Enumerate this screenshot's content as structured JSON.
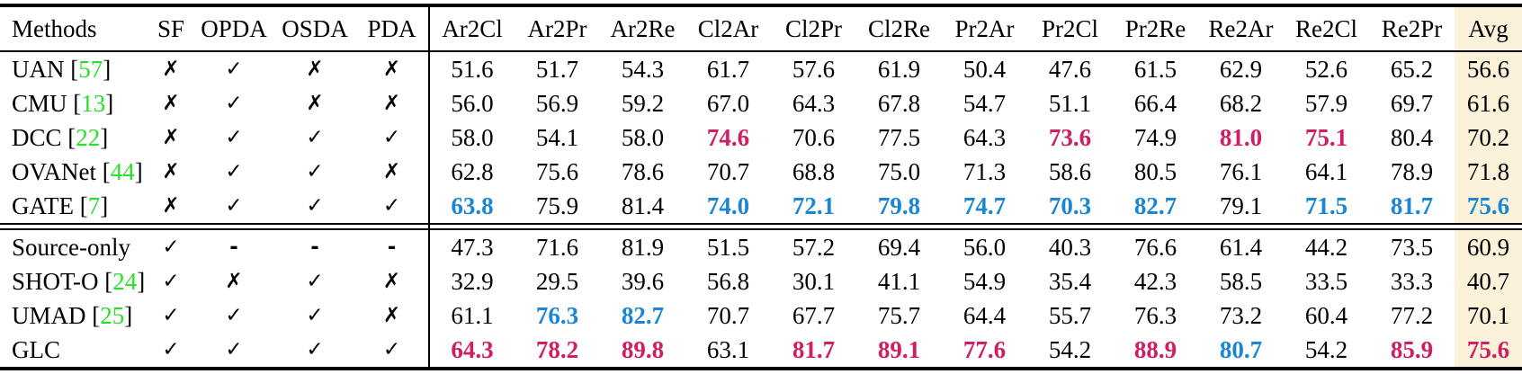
{
  "table": {
    "header": {
      "methods_label": "Methods",
      "flag_columns": [
        "SF",
        "OPDA",
        "OSDA",
        "PDA"
      ],
      "metric_columns": [
        "Ar2Cl",
        "Ar2Pr",
        "Ar2Re",
        "Cl2Ar",
        "Cl2Pr",
        "Cl2Re",
        "Pr2Ar",
        "Pr2Cl",
        "Pr2Re",
        "Re2Ar",
        "Re2Cl",
        "Re2Pr"
      ],
      "avg_label": "Avg"
    },
    "glyphs": {
      "yes": "✓",
      "no": "✗",
      "dash": "-",
      "cite_open": "[",
      "cite_close": "]"
    },
    "groups": [
      {
        "name": "non-source-free-methods",
        "rows": [
          {
            "method": "UAN",
            "cite": "57",
            "flags": [
              "no",
              "yes",
              "no",
              "no"
            ],
            "cells": [
              {
                "t": "51.6"
              },
              {
                "t": "51.7"
              },
              {
                "t": "54.3"
              },
              {
                "t": "61.7"
              },
              {
                "t": "57.6"
              },
              {
                "t": "61.9"
              },
              {
                "t": "50.4"
              },
              {
                "t": "47.6"
              },
              {
                "t": "61.5"
              },
              {
                "t": "62.9"
              },
              {
                "t": "52.6"
              },
              {
                "t": "65.2"
              }
            ],
            "avg": {
              "t": "56.6"
            }
          },
          {
            "method": "CMU",
            "cite": "13",
            "flags": [
              "no",
              "yes",
              "no",
              "no"
            ],
            "cells": [
              {
                "t": "56.0"
              },
              {
                "t": "56.9"
              },
              {
                "t": "59.2"
              },
              {
                "t": "67.0"
              },
              {
                "t": "64.3"
              },
              {
                "t": "67.8"
              },
              {
                "t": "54.7"
              },
              {
                "t": "51.1"
              },
              {
                "t": "66.4"
              },
              {
                "t": "68.2"
              },
              {
                "t": "57.9"
              },
              {
                "t": "69.7"
              }
            ],
            "avg": {
              "t": "61.6"
            }
          },
          {
            "method": "DCC",
            "cite": "22",
            "flags": [
              "no",
              "yes",
              "yes",
              "yes"
            ],
            "cells": [
              {
                "t": "58.0"
              },
              {
                "t": "54.1"
              },
              {
                "t": "58.0"
              },
              {
                "t": "74.6",
                "c": "best"
              },
              {
                "t": "70.6"
              },
              {
                "t": "77.5"
              },
              {
                "t": "64.3"
              },
              {
                "t": "73.6",
                "c": "best"
              },
              {
                "t": "74.9"
              },
              {
                "t": "81.0",
                "c": "best"
              },
              {
                "t": "75.1",
                "c": "best"
              },
              {
                "t": "80.4"
              }
            ],
            "avg": {
              "t": "70.2"
            }
          },
          {
            "method": "OVANet",
            "cite": "44",
            "flags": [
              "no",
              "yes",
              "yes",
              "no"
            ],
            "cells": [
              {
                "t": "62.8"
              },
              {
                "t": "75.6"
              },
              {
                "t": "78.6"
              },
              {
                "t": "70.7"
              },
              {
                "t": "68.8"
              },
              {
                "t": "75.0"
              },
              {
                "t": "71.3"
              },
              {
                "t": "58.6"
              },
              {
                "t": "80.5"
              },
              {
                "t": "76.1"
              },
              {
                "t": "64.1"
              },
              {
                "t": "78.9"
              }
            ],
            "avg": {
              "t": "71.8"
            }
          },
          {
            "method": "GATE",
            "cite": "7",
            "flags": [
              "no",
              "yes",
              "yes",
              "yes"
            ],
            "cells": [
              {
                "t": "63.8",
                "c": "second"
              },
              {
                "t": "75.9"
              },
              {
                "t": "81.4"
              },
              {
                "t": "74.0",
                "c": "second"
              },
              {
                "t": "72.1",
                "c": "second"
              },
              {
                "t": "79.8",
                "c": "second"
              },
              {
                "t": "74.7",
                "c": "second"
              },
              {
                "t": "70.3",
                "c": "second"
              },
              {
                "t": "82.7",
                "c": "second"
              },
              {
                "t": "79.1"
              },
              {
                "t": "71.5",
                "c": "second"
              },
              {
                "t": "81.7",
                "c": "second"
              }
            ],
            "avg": {
              "t": "75.6",
              "c": "second"
            }
          }
        ]
      },
      {
        "name": "source-free-methods",
        "rows": [
          {
            "method": "Source-only",
            "cite": null,
            "flags": [
              "yes",
              "dash",
              "dash",
              "dash"
            ],
            "cells": [
              {
                "t": "47.3"
              },
              {
                "t": "71.6"
              },
              {
                "t": "81.9"
              },
              {
                "t": "51.5"
              },
              {
                "t": "57.2"
              },
              {
                "t": "69.4"
              },
              {
                "t": "56.0"
              },
              {
                "t": "40.3"
              },
              {
                "t": "76.6"
              },
              {
                "t": "61.4"
              },
              {
                "t": "44.2"
              },
              {
                "t": "73.5"
              }
            ],
            "avg": {
              "t": "60.9"
            }
          },
          {
            "method": "SHOT-O",
            "cite": "24",
            "flags": [
              "yes",
              "no",
              "yes",
              "no"
            ],
            "cells": [
              {
                "t": "32.9"
              },
              {
                "t": "29.5"
              },
              {
                "t": "39.6"
              },
              {
                "t": "56.8"
              },
              {
                "t": "30.1"
              },
              {
                "t": "41.1"
              },
              {
                "t": "54.9"
              },
              {
                "t": "35.4"
              },
              {
                "t": "42.3"
              },
              {
                "t": "58.5"
              },
              {
                "t": "33.5"
              },
              {
                "t": "33.3"
              }
            ],
            "avg": {
              "t": "40.7"
            }
          },
          {
            "method": "UMAD",
            "cite": "25",
            "flags": [
              "yes",
              "yes",
              "yes",
              "no"
            ],
            "cells": [
              {
                "t": "61.1"
              },
              {
                "t": "76.3",
                "c": "second"
              },
              {
                "t": "82.7",
                "c": "second"
              },
              {
                "t": "70.7"
              },
              {
                "t": "67.7"
              },
              {
                "t": "75.7"
              },
              {
                "t": "64.4"
              },
              {
                "t": "55.7"
              },
              {
                "t": "76.3"
              },
              {
                "t": "73.2"
              },
              {
                "t": "60.4"
              },
              {
                "t": "77.2"
              }
            ],
            "avg": {
              "t": "70.1"
            }
          },
          {
            "method": "GLC",
            "cite": null,
            "flags": [
              "yes",
              "yes",
              "yes",
              "yes"
            ],
            "cells": [
              {
                "t": "64.3",
                "c": "best"
              },
              {
                "t": "78.2",
                "c": "best"
              },
              {
                "t": "89.8",
                "c": "best"
              },
              {
                "t": "63.1"
              },
              {
                "t": "81.7",
                "c": "best"
              },
              {
                "t": "89.1",
                "c": "best"
              },
              {
                "t": "77.6",
                "c": "best"
              },
              {
                "t": "54.2"
              },
              {
                "t": "88.9",
                "c": "best"
              },
              {
                "t": "80.7",
                "c": "second"
              },
              {
                "t": "54.2"
              },
              {
                "t": "85.9",
                "c": "best"
              }
            ],
            "avg": {
              "t": "75.6",
              "c": "best"
            }
          }
        ]
      }
    ]
  },
  "colors": {
    "best": "#d01e64",
    "second_best": "#1b86d3",
    "citation": "#28e028",
    "avg_column_bg": "#fbf2d9",
    "rule": "#000000",
    "text": "#000000"
  }
}
